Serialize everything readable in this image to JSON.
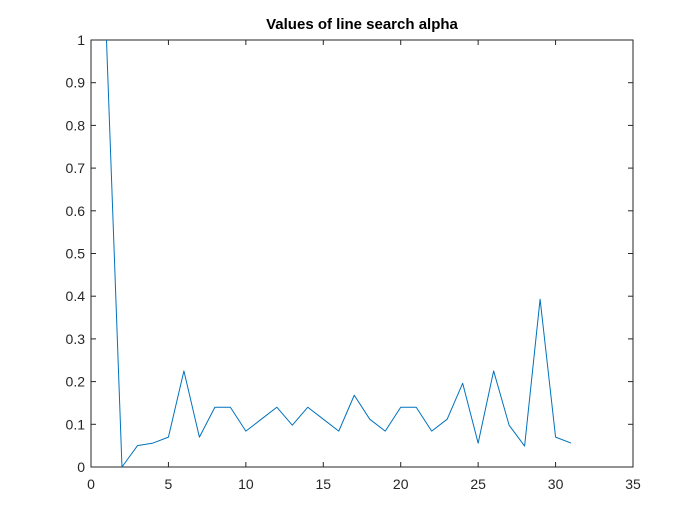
{
  "chart_data": {
    "type": "line",
    "title": "Values of line search alpha",
    "xlabel": "",
    "ylabel": "",
    "xlim": [
      0,
      35
    ],
    "ylim": [
      0,
      1
    ],
    "x_ticks": [
      0,
      5,
      10,
      15,
      20,
      25,
      30,
      35
    ],
    "y_ticks": [
      0,
      0.1,
      0.2,
      0.3,
      0.4,
      0.5,
      0.6,
      0.7,
      0.8,
      0.9,
      1
    ],
    "x_tick_labels": [
      "0",
      "5",
      "10",
      "15",
      "20",
      "25",
      "30",
      "35"
    ],
    "y_tick_labels": [
      "0",
      "0.1",
      "0.2",
      "0.3",
      "0.4",
      "0.5",
      "0.6",
      "0.7",
      "0.8",
      "0.9",
      "1"
    ],
    "grid": false,
    "box": true,
    "series": [
      {
        "color": "#0072bd",
        "x": [
          1,
          2,
          3,
          4,
          5,
          6,
          7,
          8,
          9,
          10,
          11,
          12,
          13,
          14,
          15,
          16,
          17,
          18,
          19,
          20,
          21,
          22,
          23,
          24,
          25,
          26,
          27,
          28,
          29,
          30,
          31
        ],
        "y": [
          1.0,
          0.0,
          0.05,
          0.056,
          0.07,
          0.225,
          0.07,
          0.14,
          0.14,
          0.084,
          0.112,
          0.14,
          0.098,
          0.14,
          0.112,
          0.084,
          0.168,
          0.112,
          0.084,
          0.14,
          0.14,
          0.084,
          0.112,
          0.196,
          0.056,
          0.225,
          0.098,
          0.049,
          0.393,
          0.07,
          0.056
        ]
      }
    ]
  }
}
